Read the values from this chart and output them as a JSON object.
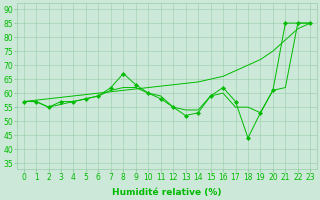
{
  "x": [
    0,
    1,
    2,
    3,
    4,
    5,
    6,
    7,
    8,
    9,
    10,
    11,
    12,
    13,
    14,
    15,
    16,
    17,
    18,
    19,
    20,
    21,
    22,
    23
  ],
  "line1": [
    57,
    57,
    55,
    57,
    57,
    58,
    59,
    62,
    67,
    63,
    60,
    58,
    55,
    52,
    53,
    59,
    62,
    57,
    44,
    53,
    61,
    85,
    85,
    85
  ],
  "line2": [
    57,
    57,
    55,
    56,
    57,
    58,
    59,
    61,
    62,
    62,
    60,
    59,
    55,
    54,
    54,
    59,
    60,
    55,
    55,
    53,
    61,
    62,
    85,
    85
  ],
  "line3": [
    57,
    57.5,
    58,
    58.5,
    59,
    59.5,
    60,
    60.5,
    61,
    61.5,
    62,
    62.5,
    63,
    63.5,
    64,
    65,
    66,
    68,
    70,
    72,
    75,
    79,
    83,
    85
  ],
  "bg_color": "#cce8d8",
  "grid_color": "#99ccaa",
  "line_color": "#00bb00",
  "xlabel": "Humidité relative (%)",
  "ylim": [
    33,
    92
  ],
  "xlim": [
    -0.5,
    23.5
  ],
  "yticks": [
    35,
    40,
    45,
    50,
    55,
    60,
    65,
    70,
    75,
    80,
    85,
    90
  ],
  "xticks": [
    0,
    1,
    2,
    3,
    4,
    5,
    6,
    7,
    8,
    9,
    10,
    11,
    12,
    13,
    14,
    15,
    16,
    17,
    18,
    19,
    20,
    21,
    22,
    23
  ],
  "tick_fontsize": 5.5,
  "xlabel_fontsize": 6.5
}
